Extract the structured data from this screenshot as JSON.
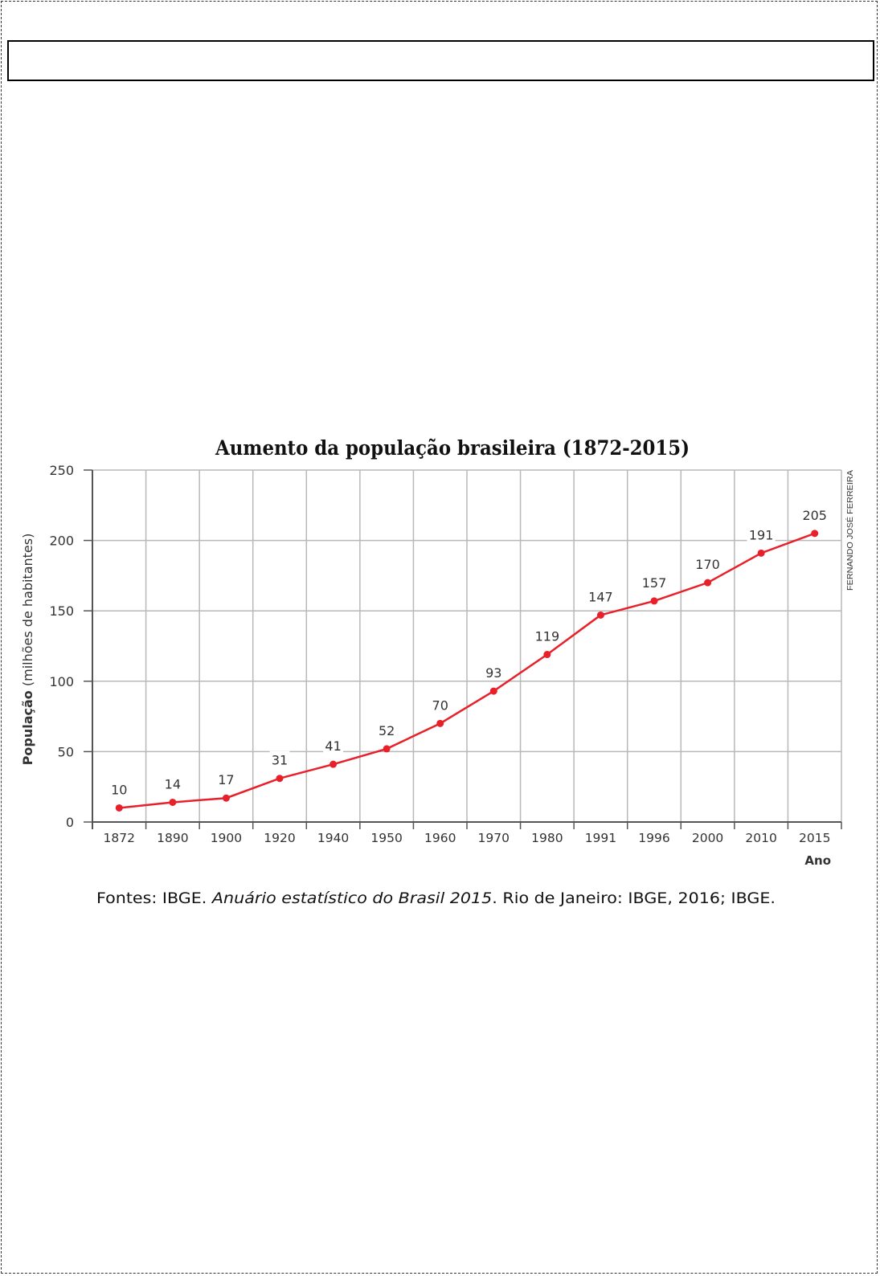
{
  "chart_data": {
    "type": "line",
    "title": "Aumento da população brasileira (1872-2015)",
    "ylabel_bold": "População",
    "ylabel_rest": " (milhões de habitantes)",
    "xlabel": "Ano",
    "categories": [
      "1872",
      "1890",
      "1900",
      "1920",
      "1940",
      "1950",
      "1960",
      "1970",
      "1980",
      "1991",
      "1996",
      "2000",
      "2010",
      "2015"
    ],
    "values": [
      10,
      14,
      17,
      31,
      41,
      52,
      70,
      93,
      119,
      147,
      157,
      170,
      191,
      205
    ],
    "yticks": [
      0,
      50,
      100,
      150,
      200,
      250
    ],
    "ylim": [
      0,
      250
    ],
    "grid": true,
    "line_color": "#e8202a",
    "credit": "FERNANDO JOSÉ FERREIRA"
  },
  "source": {
    "prefix": "Fontes: IBGE. ",
    "italic": "Anuário estatístico do Brasil 2015",
    "suffix": ". Rio de Janeiro: IBGE, 2016; IBGE."
  }
}
